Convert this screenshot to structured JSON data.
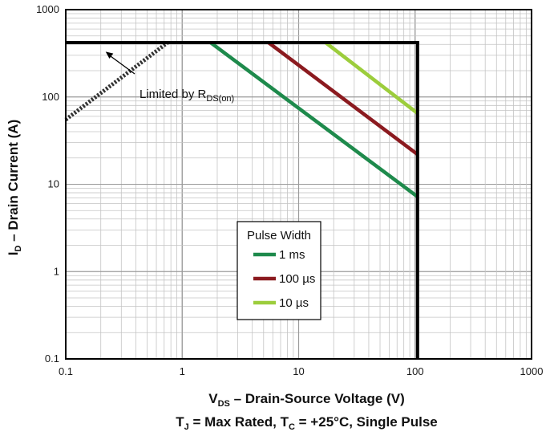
{
  "chart_data": {
    "type": "line",
    "x_scale": "log",
    "y_scale": "log",
    "xlim": [
      0.1,
      1000
    ],
    "ylim": [
      0.1,
      1000
    ],
    "grid": true,
    "x_ticks": [
      "0.1",
      "1",
      "10",
      "100",
      "1000"
    ],
    "y_ticks": [
      "0.1",
      "1",
      "10",
      "100",
      "1000"
    ],
    "xlabel": {
      "main": "V",
      "sub": "DS",
      "rest": " – Drain-Source Voltage (V)"
    },
    "ylabel": {
      "main": "I",
      "sub": "D",
      "rest": " – Drain Current (A)"
    },
    "caption": {
      "p1": "T",
      "s1": "J",
      "p2": " = Max Rated, T",
      "s2": "C",
      "p3": " = +25°C, Single Pulse"
    },
    "annotation": {
      "main": "Limited by R",
      "sub": "DS(on)"
    },
    "legend": {
      "title": "Pulse Width",
      "position": "center-bottom"
    },
    "limits": {
      "current_limit_A": 420,
      "voltage_limit_V": 105,
      "rdson_line": {
        "x": [
          0.1,
          0.75
        ],
        "y": [
          55,
          420
        ]
      }
    },
    "series": [
      {
        "name": "1 ms",
        "color": "#1e8a4c",
        "x": [
          1.75,
          105
        ],
        "y": [
          420,
          7.2
        ]
      },
      {
        "name": "100 µs",
        "color": "#8b1a1f",
        "x": [
          5.5,
          105
        ],
        "y": [
          420,
          22
        ]
      },
      {
        "name": "10 µs",
        "color": "#9ccd3c",
        "x": [
          17,
          105
        ],
        "y": [
          420,
          65
        ]
      }
    ],
    "colors": {
      "boundary": "#000000",
      "grid_major": "#9a9a9a",
      "grid_minor": "#c4c4c4"
    }
  }
}
